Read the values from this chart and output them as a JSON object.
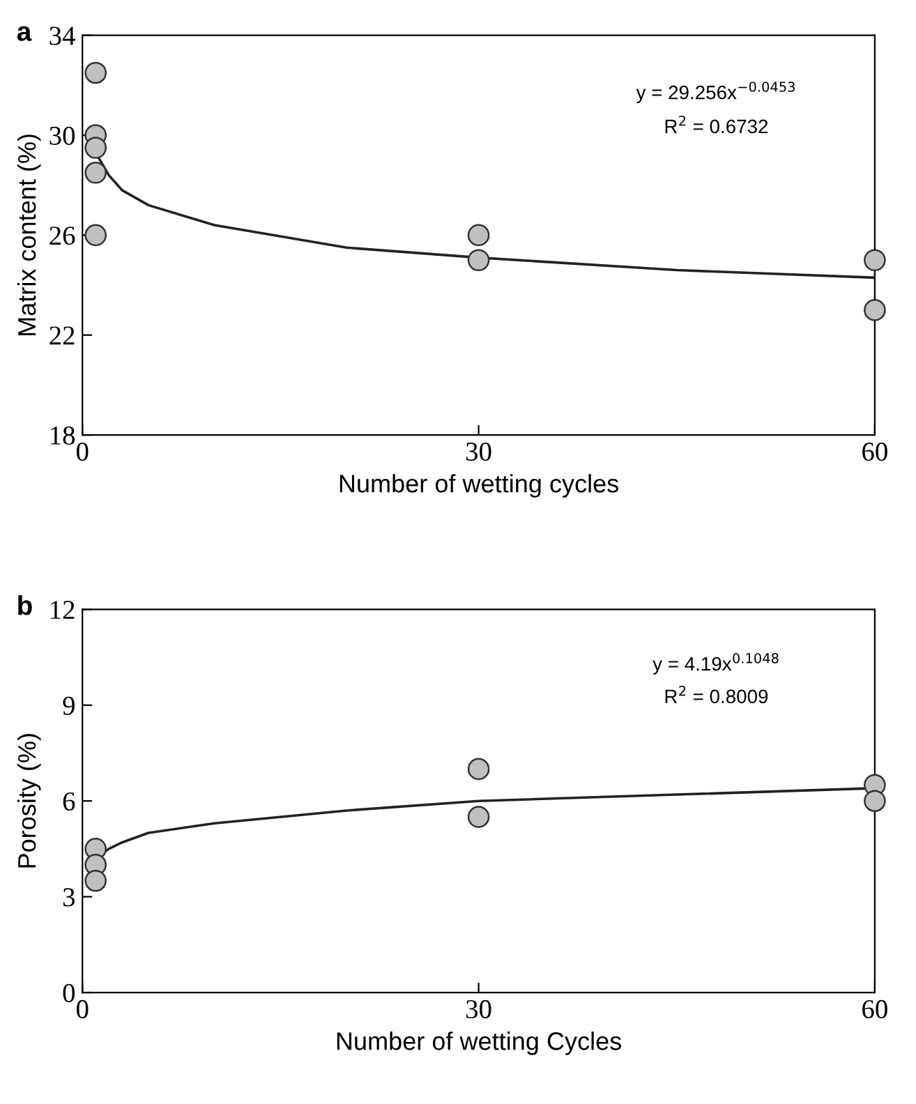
{
  "chart_data": [
    {
      "type": "scatter",
      "title": "a",
      "xlabel": "Number of wetting cycles",
      "ylabel": "Matrix content (%)",
      "xlim": [
        0,
        60
      ],
      "xticks": [
        0,
        30,
        60
      ],
      "ylim": [
        18,
        34
      ],
      "yticks": [
        18,
        22,
        26,
        30,
        34
      ],
      "grid": false,
      "legend": false,
      "annotations": [
        "y = 29.256x$^{−0.0453}$",
        "R$^{2}$ = 0.6732"
      ],
      "series": [
        {
          "type": "line",
          "color": "#222222",
          "marker": "none",
          "line_style": "solid",
          "x": [
            1,
            2,
            3,
            5,
            10,
            20,
            30,
            45,
            60
          ],
          "values": [
            29.3,
            28.4,
            27.8,
            27.2,
            26.4,
            25.5,
            25.1,
            24.6,
            24.3
          ]
        },
        {
          "color": "#c0c0c0",
          "marker": "circle",
          "x": [
            1,
            1,
            1,
            1,
            1,
            30,
            30,
            60,
            60
          ],
          "values": [
            32.5,
            30,
            29.5,
            28.5,
            26,
            26,
            25,
            25,
            23
          ]
        }
      ]
    },
    {
      "type": "scatter",
      "title": "b",
      "xlabel": "Number of wetting Cycles",
      "ylabel": "Porosity (%)",
      "xlim": [
        0,
        60
      ],
      "xticks": [
        0,
        30,
        60
      ],
      "ylim": [
        0,
        12
      ],
      "yticks": [
        0,
        3,
        6,
        9,
        12
      ],
      "grid": false,
      "legend": false,
      "annotations": [
        "y = 4.19x$^{0.1048}$",
        "R$^{2}$ = 0.8009"
      ],
      "series": [
        {
          "type": "line",
          "color": "#222222",
          "marker": "none",
          "line_style": "solid",
          "x": [
            1,
            2,
            3,
            5,
            10,
            20,
            30,
            45,
            60
          ],
          "values": [
            4.2,
            4.5,
            4.7,
            5.0,
            5.3,
            5.7,
            6.0,
            6.2,
            6.4
          ]
        },
        {
          "color": "#c0c0c0",
          "marker": "circle",
          "x": [
            1,
            1,
            1,
            30,
            30,
            60,
            60
          ],
          "values": [
            4.5,
            4,
            3.5,
            7,
            5.5,
            6.5,
            6
          ]
        }
      ]
    }
  ]
}
